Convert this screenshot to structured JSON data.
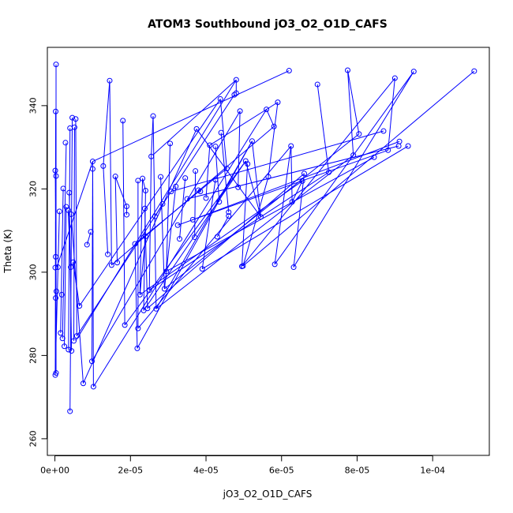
{
  "chart_data": {
    "type": "line",
    "title": "ATOM3 Southbound jO3_O2_O1D_CAFS",
    "xlabel": "jO3_O2_O1D_CAFS",
    "ylabel": "Theta (K)",
    "xlim": [
      -2e-06,
      0.000115
    ],
    "ylim": [
      256,
      354
    ],
    "xticks": [
      0,
      2e-05,
      4e-05,
      6e-05,
      8e-05,
      0.0001
    ],
    "xtick_labels": [
      "0e+00",
      "2e-05",
      "4e-05",
      "6e-05",
      "8e-05",
      "1e-04"
    ],
    "yticks": [
      260,
      280,
      300,
      320,
      340
    ],
    "ytick_labels": [
      "260",
      "280",
      "300",
      "320",
      "340"
    ],
    "grid": false,
    "series": [
      {
        "color": "#0000ff",
        "marker": "open-circle",
        "points": [
          [
            3e-07,
            349.9
          ],
          [
            2e-07,
            338.6
          ],
          [
            1e-07,
            324.4
          ],
          [
            3e-07,
            323.1
          ],
          [
            2e-07,
            303.7
          ],
          [
            1e-07,
            301.1
          ],
          [
            4e-07,
            295.4
          ],
          [
            2e-07,
            293.8
          ],
          [
            3e-07,
            275.8
          ],
          [
            1e-07,
            275.3
          ],
          [
            8e-07,
            301.2
          ],
          [
            1.2e-06,
            314.6
          ],
          [
            2.2e-06,
            320.1
          ],
          [
            1.8e-06,
            294.6
          ],
          [
            1.5e-06,
            285.4
          ],
          [
            2e-06,
            284.1
          ],
          [
            2.5e-06,
            282.2
          ],
          [
            3e-06,
            315.7
          ],
          [
            2.8e-06,
            331.1
          ],
          [
            3.5e-06,
            314.9
          ],
          [
            4e-06,
            334.6
          ],
          [
            3.8e-06,
            319.1
          ],
          [
            4.2e-06,
            301.2
          ],
          [
            3.6e-06,
            281.4
          ],
          [
            4.4e-06,
            281.1
          ],
          [
            4.8e-06,
            302.4
          ],
          [
            5.2e-06,
            334.8
          ],
          [
            4.6e-06,
            337.1
          ],
          [
            5.5e-06,
            336.8
          ],
          [
            4.3e-06,
            313.9
          ],
          [
            4e-06,
            266.6
          ],
          [
            5e-06,
            283.5
          ],
          [
            5.8e-06,
            284.7
          ],
          [
            6.5e-06,
            291.9
          ],
          [
            7.5e-06,
            273.3
          ],
          [
            8.5e-06,
            306.6
          ],
          [
            9.5e-06,
            309.7
          ],
          [
            1e-05,
            324.8
          ],
          [
            1e-05,
            326.6
          ],
          [
            9.8e-06,
            278.6
          ],
          [
            1.02e-05,
            272.5
          ],
          [
            1.28e-05,
            325.5
          ],
          [
            1.45e-05,
            346.0
          ],
          [
            1.4e-05,
            304.3
          ],
          [
            1.5e-05,
            301.7
          ],
          [
            1.6e-05,
            323.0
          ],
          [
            1.65e-05,
            302.3
          ],
          [
            1.8e-05,
            336.4
          ],
          [
            1.85e-05,
            287.3
          ],
          [
            1.9e-05,
            315.8
          ],
          [
            1.9e-05,
            313.8
          ],
          [
            2.12e-05,
            306.8
          ],
          [
            2.18e-05,
            281.7
          ],
          [
            2.2e-05,
            286.5
          ],
          [
            2.2e-05,
            322.0
          ],
          [
            2.25e-05,
            294.6
          ],
          [
            2.32e-05,
            322.5
          ],
          [
            2.35e-05,
            290.8
          ],
          [
            2.38e-05,
            315.3
          ],
          [
            2.4e-05,
            319.6
          ],
          [
            2.4e-05,
            308.6
          ],
          [
            2.45e-05,
            291.3
          ],
          [
            2.5e-05,
            295.7
          ],
          [
            2.55e-05,
            327.8
          ],
          [
            2.6e-05,
            337.5
          ],
          [
            2.68e-05,
            291.2
          ],
          [
            2.65e-05,
            313.4
          ],
          [
            2.8e-05,
            322.9
          ],
          [
            2.85e-05,
            316.4
          ],
          [
            2.9e-05,
            296.0
          ],
          [
            2.95e-05,
            300.2
          ],
          [
            3.05e-05,
            330.9
          ],
          [
            3.08e-05,
            319.4
          ],
          [
            3.2e-05,
            320.6
          ],
          [
            3.25e-05,
            311.3
          ],
          [
            3.3e-05,
            308.0
          ],
          [
            3.45e-05,
            322.6
          ],
          [
            3.5e-05,
            317.6
          ],
          [
            3.65e-05,
            312.6
          ],
          [
            3.7e-05,
            308.4
          ],
          [
            3.72e-05,
            324.3
          ],
          [
            3.75e-05,
            334.4
          ],
          [
            3.8e-05,
            319.7
          ],
          [
            3.85e-05,
            319.4
          ],
          [
            3.9e-05,
            300.8
          ],
          [
            4e-05,
            317.8
          ],
          [
            4.1e-05,
            330.5
          ],
          [
            4.25e-05,
            330.2
          ],
          [
            4.25e-05,
            322.2
          ],
          [
            4.3e-05,
            308.5
          ],
          [
            4.35e-05,
            316.9
          ],
          [
            4.38e-05,
            341.6
          ],
          [
            4.4e-05,
            333.5
          ],
          [
            4.55e-05,
            324.9
          ],
          [
            4.6e-05,
            314.4
          ],
          [
            4.6e-05,
            313.5
          ],
          [
            4.75e-05,
            342.6
          ],
          [
            4.8e-05,
            346.2
          ],
          [
            4.8e-05,
            343.0
          ],
          [
            4.85e-05,
            320.4
          ],
          [
            4.9e-05,
            338.7
          ],
          [
            4.95e-05,
            301.4
          ],
          [
            4.98e-05,
            301.5
          ],
          [
            5.05e-05,
            326.7
          ],
          [
            5.1e-05,
            326.0
          ],
          [
            5.22e-05,
            331.5
          ],
          [
            5.45e-05,
            313.3
          ],
          [
            5.6e-05,
            339.1
          ],
          [
            5.65e-05,
            322.9
          ],
          [
            5.8e-05,
            335.0
          ],
          [
            5.82e-05,
            301.9
          ],
          [
            5.9e-05,
            340.8
          ],
          [
            6.2e-05,
            348.4
          ],
          [
            6.25e-05,
            330.3
          ],
          [
            6.28e-05,
            316.9
          ],
          [
            6.32e-05,
            301.2
          ],
          [
            6.55e-05,
            321.9
          ],
          [
            6.6e-05,
            323.7
          ],
          [
            6.95e-05,
            345.1
          ],
          [
            7.25e-05,
            324.0
          ],
          [
            7.75e-05,
            348.5
          ],
          [
            7.9e-05,
            328.1
          ],
          [
            8.05e-05,
            333.2
          ],
          [
            8.45e-05,
            327.6
          ],
          [
            8.7e-05,
            333.9
          ],
          [
            8.82e-05,
            329.3
          ],
          [
            9e-05,
            346.6
          ],
          [
            9.1e-05,
            330.3
          ],
          [
            9.12e-05,
            331.4
          ],
          [
            9.35e-05,
            330.3
          ],
          [
            9.5e-05,
            348.2
          ],
          [
            0.000111,
            348.3
          ]
        ],
        "segments": [
          [
            3e-07,
            349.9,
            3e-07,
            275.8
          ],
          [
            2e-07,
            338.6,
            1e-07,
            275.3
          ],
          [
            1e-07,
            324.4,
            3e-07,
            301.1
          ],
          [
            3e-07,
            323.1,
            2e-07,
            293.8
          ],
          [
            1.2e-06,
            314.6,
            1e-07,
            276.0
          ],
          [
            2.2e-06,
            320.1,
            1.5e-06,
            285.4
          ],
          [
            3e-06,
            331.1,
            2e-06,
            284.1
          ],
          [
            3e-06,
            315.7,
            2.5e-06,
            282.2
          ],
          [
            3.5e-06,
            314.9,
            4.2e-06,
            301.2
          ],
          [
            4e-06,
            334.6,
            3.6e-06,
            281.4
          ],
          [
            3.8e-06,
            319.1,
            4.4e-06,
            281.1
          ],
          [
            4.6e-06,
            337.1,
            4e-06,
            266.6
          ],
          [
            5.2e-06,
            334.8,
            5e-06,
            283.5
          ],
          [
            5.5e-06,
            336.8,
            5.8e-06,
            284.7
          ],
          [
            4.8e-06,
            302.4,
            6.5e-06,
            291.9
          ],
          [
            4.3e-06,
            313.9,
            7.5e-06,
            273.3
          ],
          [
            9.5e-06,
            309.7,
            8.5e-06,
            306.6
          ],
          [
            1e-05,
            324.8,
            9.8e-06,
            278.6
          ],
          [
            1e-05,
            326.6,
            1.02e-05,
            272.5
          ],
          [
            1.28e-05,
            325.5,
            1.4e-05,
            304.3
          ],
          [
            1.45e-05,
            346.0,
            1.5e-05,
            301.7
          ],
          [
            1.6e-05,
            323.0,
            1.65e-05,
            302.3
          ],
          [
            1.8e-05,
            336.4,
            1.85e-05,
            287.3
          ],
          [
            1.9e-05,
            315.8,
            1.9e-05,
            313.8
          ],
          [
            2.12e-05,
            306.8,
            2.18e-05,
            281.7
          ],
          [
            2.2e-05,
            322.0,
            2.2e-05,
            286.5
          ],
          [
            2.32e-05,
            322.5,
            2.25e-05,
            294.6
          ],
          [
            2.4e-05,
            319.6,
            2.35e-05,
            290.8
          ],
          [
            2.38e-05,
            315.3,
            2.45e-05,
            291.3
          ],
          [
            2.55e-05,
            327.8,
            2.5e-05,
            295.7
          ],
          [
            2.6e-05,
            337.5,
            2.68e-05,
            291.2
          ],
          [
            2.8e-05,
            322.9,
            2.9e-05,
            296.0
          ],
          [
            3.05e-05,
            330.9,
            2.95e-05,
            300.2
          ],
          [
            5e-07,
            301.2,
            1e-05,
            326.6
          ],
          [
            1e-05,
            326.6,
            6.2e-05,
            348.4
          ],
          [
            1.28e-05,
            325.5,
            1.45e-05,
            346.0
          ],
          [
            5.5e-06,
            283.5,
            4.8e-05,
            346.2
          ],
          [
            5.8e-06,
            284.7,
            4.75e-05,
            342.6
          ],
          [
            6.5e-06,
            291.9,
            4.38e-05,
            341.6
          ],
          [
            7.5e-06,
            273.3,
            3.75e-05,
            334.4
          ],
          [
            9.8e-06,
            278.6,
            4.9e-05,
            338.7
          ],
          [
            1.02e-05,
            272.5,
            5.6e-05,
            339.1
          ],
          [
            1.5e-05,
            301.7,
            5.8e-05,
            335.0
          ],
          [
            1.85e-05,
            287.3,
            5.05e-05,
            326.7
          ],
          [
            2.18e-05,
            281.7,
            5.22e-05,
            331.5
          ],
          [
            2.2e-05,
            286.5,
            6.25e-05,
            330.3
          ],
          [
            2.25e-05,
            294.6,
            6.55e-05,
            321.9
          ],
          [
            2.45e-05,
            291.3,
            6.6e-05,
            323.7
          ],
          [
            2.5e-05,
            295.7,
            7.25e-05,
            324.0
          ],
          [
            2.68e-05,
            291.2,
            7.9e-05,
            328.1
          ],
          [
            2.9e-05,
            296.0,
            8.05e-05,
            333.2
          ],
          [
            2.95e-05,
            300.2,
            8.45e-05,
            327.6
          ],
          [
            3.08e-05,
            319.4,
            8.7e-05,
            333.9
          ],
          [
            3.25e-05,
            311.3,
            8.82e-05,
            329.3
          ],
          [
            3.5e-05,
            317.6,
            9.1e-05,
            330.3
          ],
          [
            3.65e-05,
            312.6,
            9.12e-05,
            331.4
          ],
          [
            3.9e-05,
            300.8,
            9.35e-05,
            330.3
          ],
          [
            4.95e-05,
            301.4,
            9e-05,
            346.6
          ],
          [
            5.82e-05,
            301.9,
            9.5e-05,
            348.2
          ],
          [
            6.32e-05,
            301.2,
            9.5e-05,
            348.2
          ],
          [
            4.98e-05,
            301.5,
            0.000111,
            348.3
          ],
          [
            7.25e-05,
            324.0,
            6.95e-05,
            345.1
          ],
          [
            7.75e-05,
            348.5,
            7.9e-05,
            328.1
          ],
          [
            8.05e-05,
            333.2,
            7.75e-05,
            348.5
          ],
          [
            9e-05,
            346.6,
            8.82e-05,
            329.3
          ],
          [
            6.25e-05,
            330.3,
            6.28e-05,
            316.9
          ],
          [
            5.9e-05,
            340.8,
            5.65e-05,
            322.9
          ],
          [
            5.8e-05,
            335.0,
            5.6e-05,
            339.1
          ],
          [
            5.45e-05,
            313.3,
            5.22e-05,
            331.5
          ],
          [
            4.9e-05,
            338.7,
            4.85e-05,
            320.4
          ],
          [
            4.8e-05,
            343.0,
            4.8e-05,
            346.2
          ],
          [
            4.55e-05,
            324.9,
            4.38e-05,
            341.6
          ],
          [
            4.6e-05,
            314.4,
            4.4e-05,
            333.5
          ],
          [
            4.6e-05,
            313.5,
            4.3e-05,
            308.5
          ],
          [
            4.35e-05,
            316.9,
            4.25e-05,
            330.2
          ],
          [
            4.1e-05,
            330.5,
            4e-05,
            317.8
          ],
          [
            4.25e-05,
            322.2,
            3.9e-05,
            300.8
          ],
          [
            3.85e-05,
            319.4,
            3.8e-05,
            319.7
          ],
          [
            3.72e-05,
            324.3,
            3.7e-05,
            308.4
          ],
          [
            3.45e-05,
            322.6,
            3.3e-05,
            308.0
          ],
          [
            3.2e-05,
            320.6,
            2.9e-05,
            296.0
          ],
          [
            2.85e-05,
            316.4,
            2.65e-05,
            313.4
          ],
          [
            2.6e-05,
            337.5,
            2.55e-05,
            327.8
          ],
          [
            2.4e-05,
            308.6,
            2.25e-05,
            294.6
          ],
          [
            2.6e-05,
            328.2,
            4.8e-05,
            346.2
          ],
          [
            5.05e-05,
            326.7,
            5.45e-05,
            313.3
          ],
          [
            5.1e-05,
            326.0,
            4.95e-05,
            301.4
          ],
          [
            5.65e-05,
            322.9,
            4.98e-05,
            301.5
          ],
          [
            6.55e-05,
            321.9,
            6.28e-05,
            316.9
          ],
          [
            6.25e-05,
            330.3,
            5.82e-05,
            301.9
          ],
          [
            6.6e-05,
            323.7,
            6.32e-05,
            301.2
          ],
          [
            3.75e-05,
            334.4,
            5.45e-05,
            313.3
          ],
          [
            4.1e-05,
            330.5,
            5.9e-05,
            340.8
          ],
          [
            2.12e-05,
            306.8,
            4.55e-05,
            324.9
          ],
          [
            2.35e-05,
            290.8,
            5.05e-05,
            326.7
          ],
          [
            2.68e-05,
            291.2,
            5.22e-05,
            331.5
          ],
          [
            2.4e-05,
            319.6,
            2.32e-05,
            322.5
          ],
          [
            1.9e-05,
            315.8,
            1.6e-05,
            323.0
          ]
        ]
      }
    ]
  }
}
